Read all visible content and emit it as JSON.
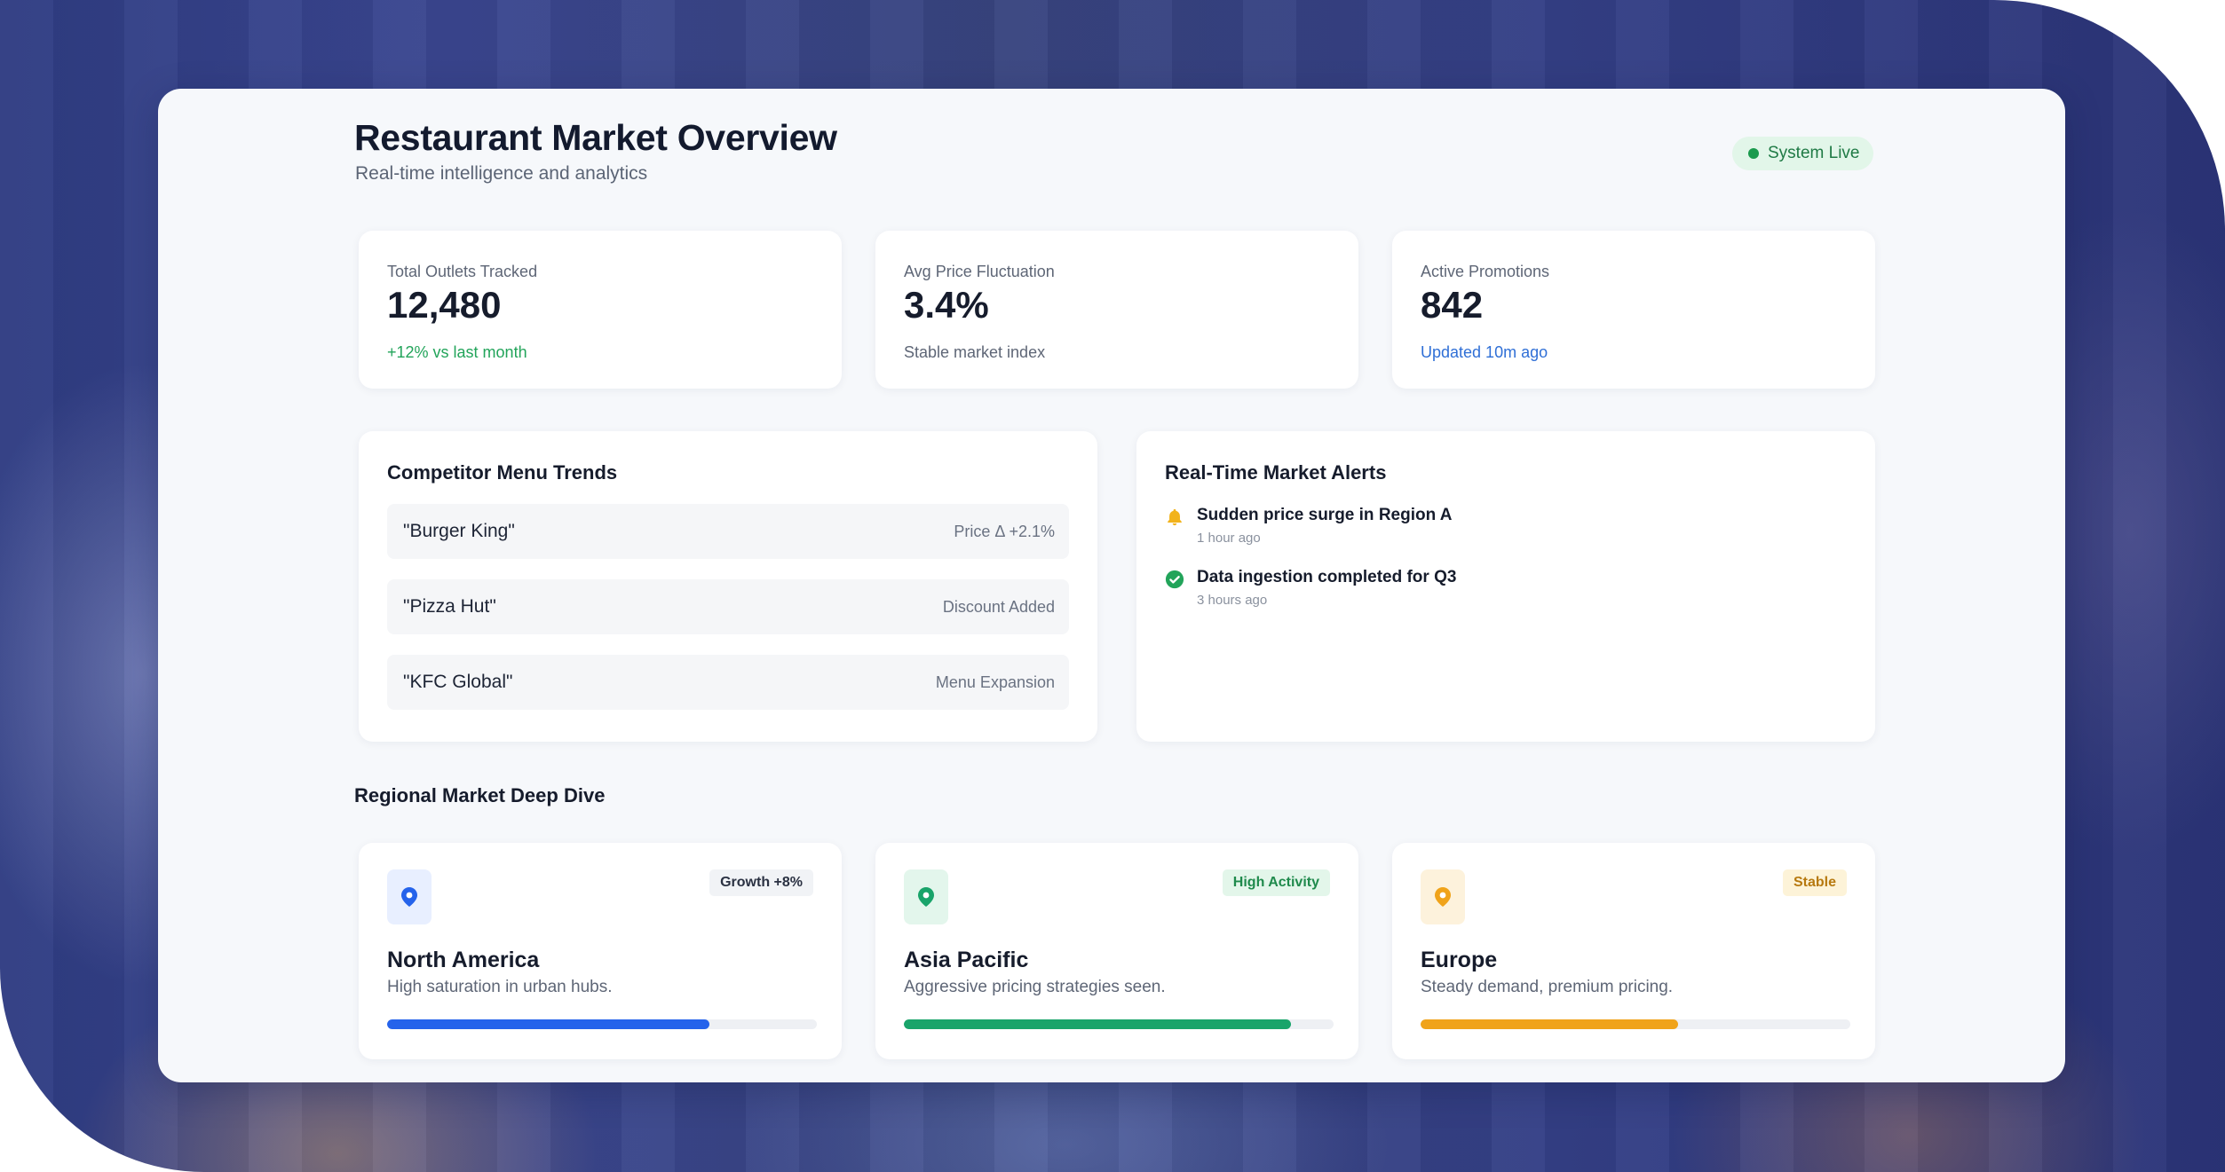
{
  "header": {
    "title": "Restaurant Market Overview",
    "subtitle": "Real-time intelligence and analytics",
    "status": "System Live"
  },
  "stats": [
    {
      "label": "Total Outlets Tracked",
      "value": "12,480",
      "note": "+12% vs last month",
      "note_color": "#22a45a"
    },
    {
      "label": "Avg Price Fluctuation",
      "value": "3.4%",
      "note": "Stable market index",
      "note_color": "#5e6676"
    },
    {
      "label": "Active Promotions",
      "value": "842",
      "note": "Updated 10m ago",
      "note_color": "#2f6fd6"
    }
  ],
  "trends": {
    "title": "Competitor Menu Trends",
    "rows": [
      {
        "name": "\"Burger King\"",
        "meta": "Price Δ +2.1%"
      },
      {
        "name": "\"Pizza Hut\"",
        "meta": "Discount Added"
      },
      {
        "name": "\"KFC Global\"",
        "meta": "Menu Expansion"
      }
    ]
  },
  "alerts": {
    "title": "Real-Time Market Alerts",
    "items": [
      {
        "text": "Sudden price surge in Region A",
        "time": "1 hour ago",
        "icon": "bell-icon",
        "color": "#f2b31c"
      },
      {
        "text": "Data ingestion completed for Q3",
        "time": "3 hours ago",
        "icon": "check-circle-icon",
        "color": "#22a45a"
      }
    ]
  },
  "regions": {
    "title": "Regional Market Deep Dive",
    "items": [
      {
        "name": "North America",
        "desc": "High saturation in urban hubs.",
        "badge": "Growth +8%",
        "badge_bg": "#f1f3f6",
        "badge_color": "#2a3142",
        "accent": "#2563eb",
        "icon_bg": "#e8efff",
        "progress": 0.75
      },
      {
        "name": "Asia Pacific",
        "desc": "Aggressive pricing strategies seen.",
        "badge": "High Activity",
        "badge_bg": "#e3f6ea",
        "badge_color": "#1f8a4c",
        "accent": "#19a46a",
        "icon_bg": "#e3f6ec",
        "progress": 0.9
      },
      {
        "name": "Europe",
        "desc": "Steady demand, premium pricing.",
        "badge": "Stable",
        "badge_bg": "#fdf3d8",
        "badge_color": "#b7790f",
        "accent": "#f0a31a",
        "icon_bg": "#fdf2dc",
        "progress": 0.6
      }
    ]
  }
}
